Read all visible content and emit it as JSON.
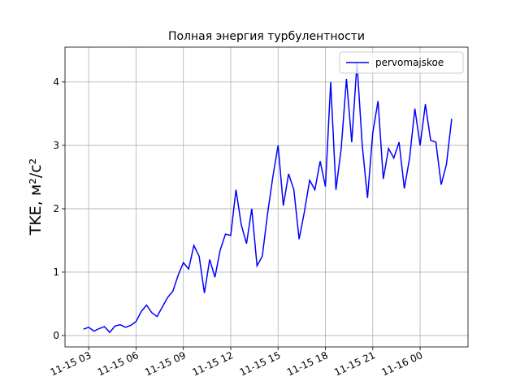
{
  "chart_data": {
    "type": "line",
    "title": "Полная энергия турбулентности",
    "y_label": "TKE, м²/с²",
    "x": [
      "11-15 02:40",
      "11-15 03:00",
      "11-15 03:20",
      "11-15 03:40",
      "11-15 04:00",
      "11-15 04:20",
      "11-15 04:40",
      "11-15 05:00",
      "11-15 05:20",
      "11-15 05:40",
      "11-15 06:00",
      "11-15 06:20",
      "11-15 06:40",
      "11-15 07:00",
      "11-15 07:20",
      "11-15 07:40",
      "11-15 08:00",
      "11-15 08:20",
      "11-15 08:40",
      "11-15 09:00",
      "11-15 09:20",
      "11-15 09:40",
      "11-15 10:00",
      "11-15 10:20",
      "11-15 10:40",
      "11-15 11:00",
      "11-15 11:20",
      "11-15 11:40",
      "11-15 12:00",
      "11-15 12:20",
      "11-15 12:40",
      "11-15 13:00",
      "11-15 13:20",
      "11-15 13:40",
      "11-15 14:00",
      "11-15 14:20",
      "11-15 14:40",
      "11-15 15:00",
      "11-15 15:20",
      "11-15 15:40",
      "11-15 16:00",
      "11-15 16:20",
      "11-15 16:40",
      "11-15 17:00",
      "11-15 17:20",
      "11-15 17:40",
      "11-15 18:00",
      "11-15 18:20",
      "11-15 18:40",
      "11-15 19:00",
      "11-15 19:20",
      "11-15 19:40",
      "11-15 20:00",
      "11-15 20:20",
      "11-15 20:40",
      "11-15 21:00",
      "11-15 21:20",
      "11-15 21:40",
      "11-15 22:00",
      "11-15 22:20",
      "11-15 22:40",
      "11-15 23:00",
      "11-15 23:20",
      "11-15 23:40",
      "11-16 00:00",
      "11-16 00:20",
      "11-16 00:40",
      "11-16 01:00",
      "11-16 01:20",
      "11-16 01:40",
      "11-16 02:00"
    ],
    "series": [
      {
        "name": "pervomajskoe",
        "color": "#0000ff",
        "values": [
          0.1,
          0.13,
          0.07,
          0.11,
          0.14,
          0.05,
          0.15,
          0.17,
          0.13,
          0.16,
          0.22,
          0.38,
          0.48,
          0.36,
          0.3,
          0.45,
          0.6,
          0.7,
          0.95,
          1.15,
          1.05,
          1.42,
          1.25,
          0.67,
          1.2,
          0.92,
          1.35,
          1.6,
          1.58,
          2.3,
          1.75,
          1.45,
          2.0,
          1.1,
          1.25,
          1.92,
          2.5,
          3.0,
          2.05,
          2.55,
          2.3,
          1.52,
          1.95,
          2.45,
          2.3,
          2.75,
          2.35,
          4.0,
          2.3,
          2.95,
          4.05,
          3.05,
          4.3,
          3.0,
          2.17,
          3.2,
          3.7,
          2.47,
          2.95,
          2.8,
          3.05,
          2.32,
          2.8,
          3.58,
          3.0,
          3.65,
          3.08,
          3.05,
          2.38,
          2.7,
          3.42
        ]
      }
    ],
    "xlim": [
      "11-15 01:30",
      "11-16 03:02"
    ],
    "xticks": [
      "11-15 03",
      "11-15 06",
      "11-15 09",
      "11-15 12",
      "11-15 15",
      "11-15 18",
      "11-15 21",
      "11-16 00"
    ],
    "ylim": [
      -0.18,
      4.55
    ],
    "yticks": [
      0,
      1,
      2,
      3,
      4
    ],
    "grid": true,
    "legend": "upper right"
  }
}
